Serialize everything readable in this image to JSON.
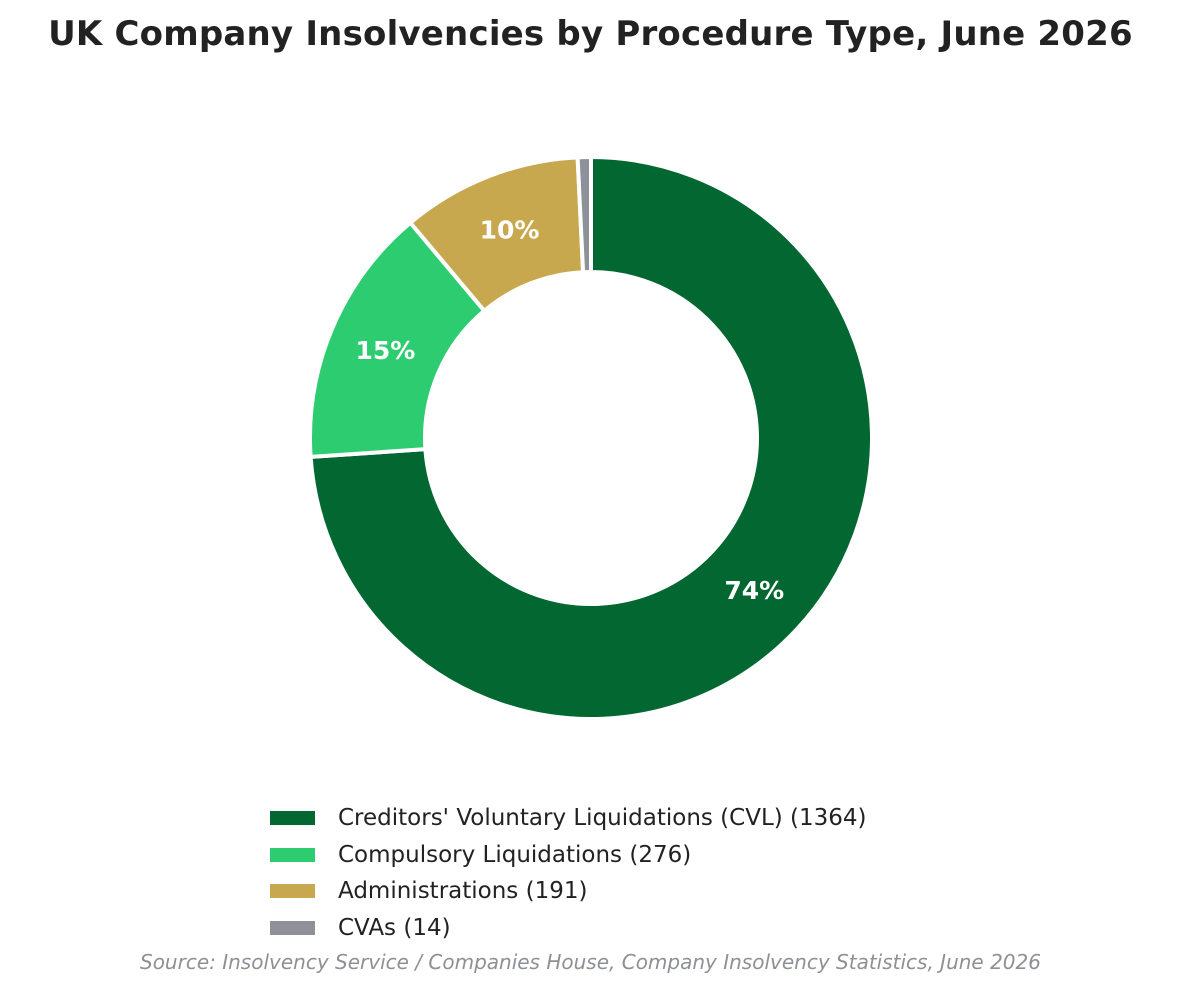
{
  "chart_data": {
    "type": "pie",
    "style": "donut",
    "title": "UK Company Insolvencies by Procedure Type, June 2026",
    "slices": [
      {
        "label": "Creditors' Voluntary Liquidations (CVL)",
        "value": 1364,
        "legend": "Creditors' Voluntary Liquidations (CVL) (1364)",
        "pct_label": "74%",
        "color": "#036732"
      },
      {
        "label": "Compulsory Liquidations",
        "value": 276,
        "legend": "Compulsory Liquidations (276)",
        "pct_label": "15%",
        "color": "#2ecc71"
      },
      {
        "label": "Administrations",
        "value": 191,
        "legend": "Administrations (191)",
        "pct_label": "10%",
        "color": "#c8a84f"
      },
      {
        "label": "CVAs",
        "value": 14,
        "legend": "CVAs (14)",
        "pct_label": "",
        "color": "#8e9199"
      }
    ],
    "legend_position": "bottom",
    "source": "Source: Insolvency Service / Companies House, Company Insolvency Statistics, June 2026"
  }
}
